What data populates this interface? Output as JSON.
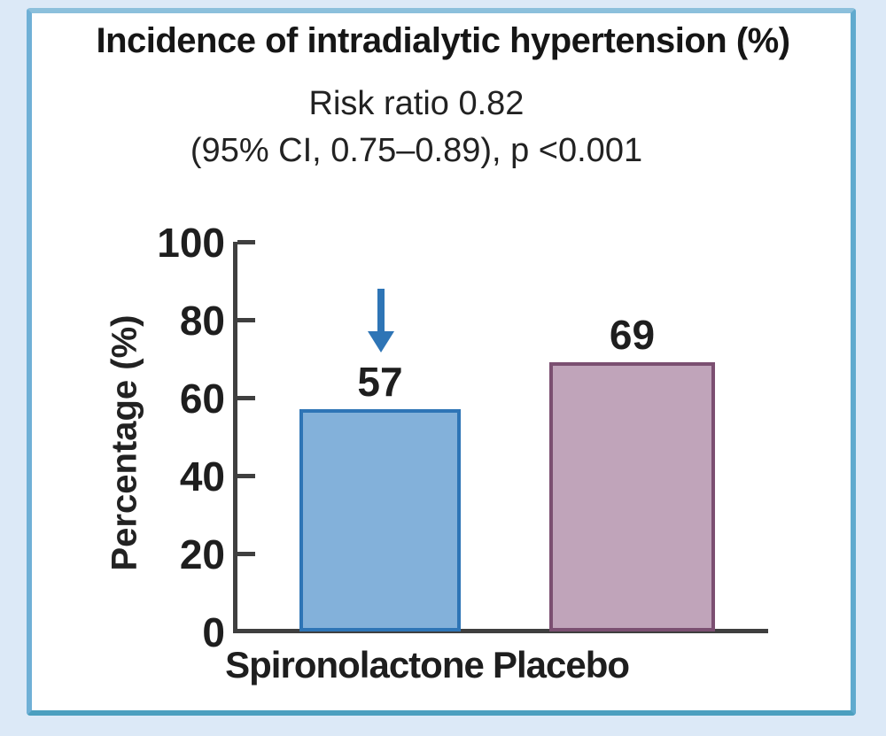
{
  "figure": {
    "subtitle_line1": "Risk ratio 0.82",
    "subtitle_line2": "(95% CI, 0.75–0.89), p <0.001"
  },
  "chart_data": {
    "type": "bar",
    "title": "Incidence of intradialytic hypertension (%)",
    "subtitle": "Risk ratio 0.82 (95% CI, 0.75–0.89), p <0.001",
    "categories": [
      "Spironolactone",
      "Placebo"
    ],
    "values": [
      57,
      69
    ],
    "value_labels": [
      "57",
      "69"
    ],
    "xlabel": "",
    "ylabel": "Percentage (%)",
    "ylim": [
      0,
      100
    ],
    "yticks": [
      0,
      20,
      40,
      60,
      80,
      100
    ],
    "ytick_labels": [
      "0",
      "20",
      "40",
      "60",
      "80",
      "100"
    ],
    "grid": false,
    "legend": "none",
    "bar_fill_colors": [
      "#83B1DA",
      "#C0A4BA"
    ],
    "bar_edge_colors": [
      "#2E75B6",
      "#7B4F71"
    ],
    "axis_color": "#3F3F3F",
    "background_color": "#DCE9F7",
    "panel_border_color": "#5FA9CB",
    "annotations": [
      {
        "symbol": "down-arrow",
        "target": "Spironolactone",
        "color": "#2E75B6"
      }
    ]
  }
}
